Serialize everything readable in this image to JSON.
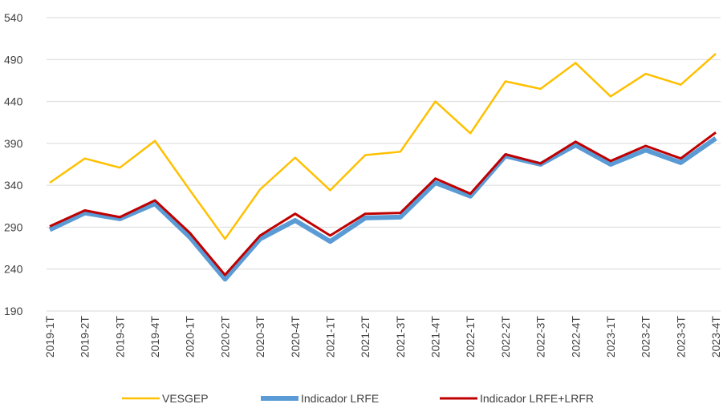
{
  "chart_data": {
    "type": "line",
    "categories": [
      "2019-1T",
      "2019-2T",
      "2019-3T",
      "2019-4T",
      "2020-1T",
      "2020-2T",
      "2020-3T",
      "2020-4T",
      "2021-1T",
      "2021-2T",
      "2021-3T",
      "2021-4T",
      "2022-1T",
      "2022-2T",
      "2022-3T",
      "2022-4T",
      "2023-1T",
      "2023-2T",
      "2023-3T",
      "2023-4T"
    ],
    "series": [
      {
        "name": "VESGEP",
        "color": "#FFC000",
        "values": [
          343,
          372,
          361,
          393,
          334,
          276,
          335,
          373,
          334,
          376,
          380,
          440,
          402,
          464,
          455,
          486,
          446,
          473,
          460,
          497
        ]
      },
      {
        "name": "Indicador LRFE",
        "color": "#5B9BD5",
        "values": [
          287,
          307,
          300,
          318,
          278,
          228,
          276,
          298,
          273,
          301,
          302,
          343,
          327,
          375,
          365,
          388,
          365,
          382,
          367,
          396
        ]
      },
      {
        "name": "Indicador LRFE+LRFR",
        "color": "#C00000",
        "values": [
          291,
          310,
          302,
          322,
          283,
          233,
          280,
          306,
          280,
          306,
          307,
          348,
          330,
          377,
          366,
          392,
          369,
          387,
          372,
          403
        ]
      }
    ],
    "ylim": [
      190,
      540
    ],
    "yticks": [
      190,
      240,
      290,
      340,
      390,
      440,
      490,
      540
    ],
    "grid": true,
    "legend": "bottom"
  }
}
